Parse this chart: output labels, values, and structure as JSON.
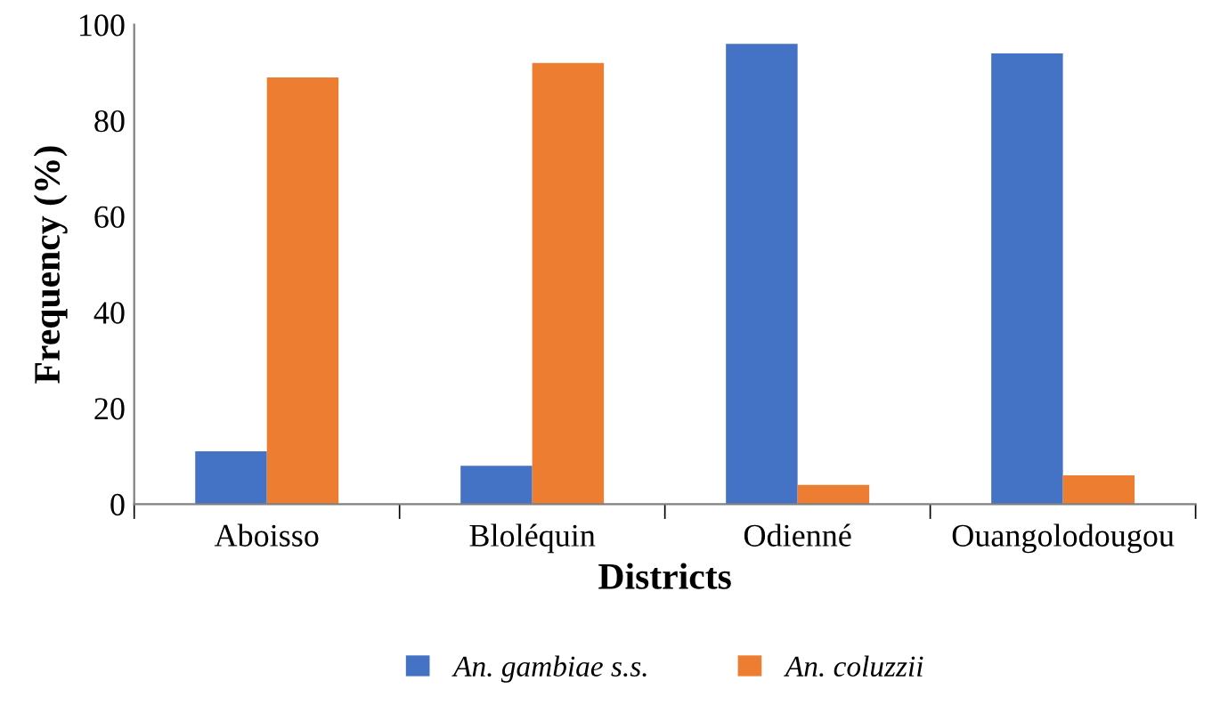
{
  "chart_data": {
    "type": "bar",
    "xlabel": "Districts",
    "ylabel": "Frequency (%)",
    "categories": [
      "Aboisso",
      "Bloléquin",
      "Odienné",
      "Ouangolodougou"
    ],
    "series": [
      {
        "name": "An. gambiae s.s.",
        "color": "#4472c4",
        "values": [
          11,
          8,
          96,
          94
        ]
      },
      {
        "name": "An. coluzzii",
        "color": "#ed7d31",
        "values": [
          89,
          92,
          4,
          6
        ]
      }
    ],
    "ylim": [
      0,
      100
    ],
    "yticks": [
      0,
      20,
      40,
      60,
      80,
      100
    ],
    "grid": false,
    "legend": "bottom"
  }
}
